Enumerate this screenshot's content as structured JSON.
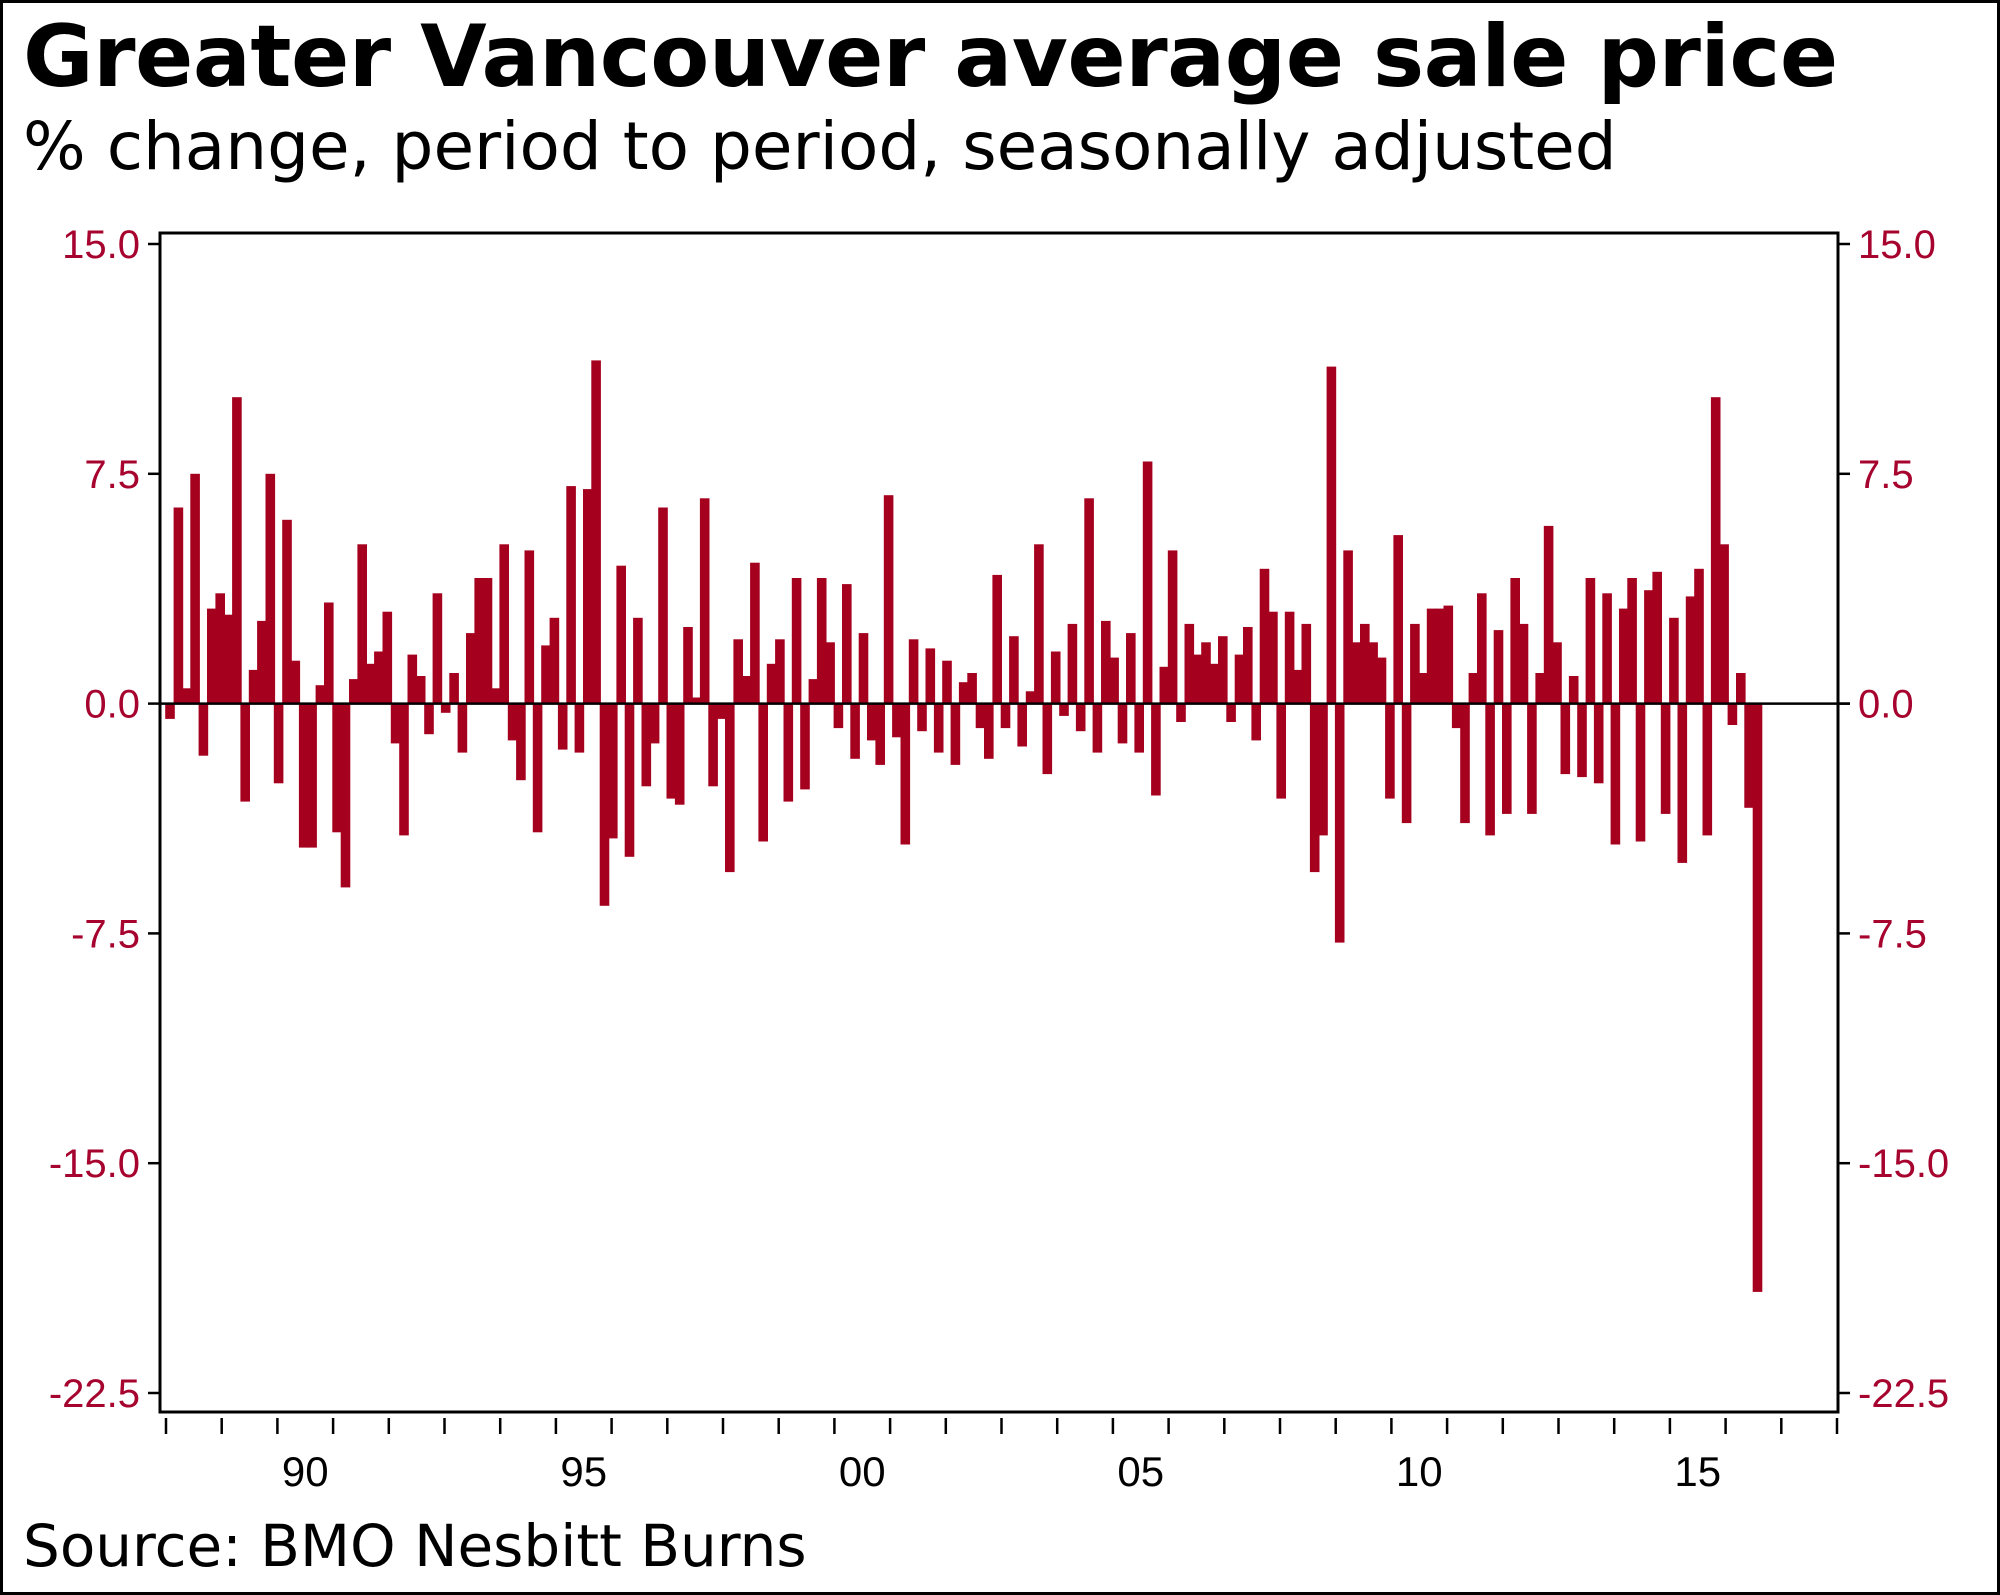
{
  "header": {
    "title": "Greater Vancouver average sale price",
    "subtitle": "% change, period to period, seasonally adjusted"
  },
  "footer": {
    "source": "Source: BMO Nesbitt Burns"
  },
  "colors": {
    "bar": "#a6001f",
    "tick_label": "#a6032e",
    "axis": "#000000"
  },
  "chart_data": {
    "type": "bar",
    "title": "Greater Vancouver average sale price",
    "subtitle": "% change, period to period, seasonally adjusted",
    "xlabel": "",
    "ylabel": "",
    "ylim": [
      -22.5,
      15.0
    ],
    "yticks": [
      15.0,
      7.5,
      0.0,
      -7.5,
      -15.0,
      -22.5
    ],
    "ytick_labels": [
      "15.0",
      "7.5",
      "0.0",
      "-7.5",
      "-15.0",
      "-22.5"
    ],
    "xlim": [
      1988.0,
      2018.0
    ],
    "xticks_minor_years": [
      1988,
      1989,
      1990,
      1991,
      1992,
      1993,
      1994,
      1995,
      1996,
      1997,
      1998,
      1999,
      2000,
      2001,
      2002,
      2003,
      2004,
      2005,
      2006,
      2007,
      2008,
      2009,
      2010,
      2011,
      2012,
      2013,
      2014,
      2015,
      2016,
      2017,
      2018
    ],
    "xtick_labels": [
      {
        "year": 1990,
        "label": "90"
      },
      {
        "year": 1995,
        "label": "95"
      },
      {
        "year": 2000,
        "label": "00"
      },
      {
        "year": 2005,
        "label": "05"
      },
      {
        "year": 2010,
        "label": "10"
      },
      {
        "year": 2015,
        "label": "15"
      }
    ],
    "dual_y_axis": true,
    "grid": false,
    "legend": "none",
    "x_start": 1988.0,
    "x_step_years": 0.15,
    "series": [
      {
        "name": "Average sale price % change",
        "values": [
          -0.5,
          6.4,
          0.5,
          7.5,
          -1.7,
          3.1,
          3.6,
          2.9,
          10.0,
          -3.2,
          1.1,
          2.7,
          7.5,
          -2.6,
          6.0,
          1.4,
          -4.7,
          -4.7,
          0.6,
          3.3,
          -4.2,
          -6.0,
          0.8,
          5.2,
          1.3,
          1.7,
          3.0,
          -1.3,
          -4.3,
          1.6,
          0.9,
          -1.0,
          3.6,
          -0.3,
          1.0,
          -1.6,
          2.3,
          4.1,
          4.1,
          0.5,
          5.2,
          -1.2,
          -2.5,
          5.0,
          -4.2,
          1.9,
          2.8,
          -1.5,
          7.1,
          -1.6,
          7.0,
          11.2,
          -6.6,
          -4.4,
          4.5,
          -5.0,
          2.8,
          -2.7,
          -1.3,
          6.4,
          -3.1,
          -3.3,
          2.5,
          0.2,
          6.7,
          -2.7,
          -0.5,
          -5.5,
          2.1,
          0.9,
          4.6,
          -4.5,
          1.3,
          2.1,
          -3.2,
          4.1,
          -2.8,
          0.8,
          4.1,
          2.0,
          -0.8,
          3.9,
          -1.8,
          2.3,
          -1.2,
          -2.0,
          6.8,
          -1.1,
          -4.6,
          2.1,
          -0.9,
          1.8,
          -1.6,
          1.4,
          -2.0,
          0.7,
          1.0,
          -0.8,
          -1.8,
          4.2,
          -0.8,
          2.2,
          -1.4,
          0.4,
          5.2,
          -2.3,
          1.7,
          -0.4,
          2.6,
          -0.9,
          6.7,
          -1.6,
          2.7,
          1.5,
          -1.3,
          2.3,
          -1.6,
          7.9,
          -3.0,
          1.2,
          5.0,
          -0.6,
          2.6,
          1.6,
          2.0,
          1.3,
          2.2,
          -0.6,
          1.6,
          2.5,
          -1.2,
          4.4,
          3.0,
          -3.1,
          3.0,
          1.1,
          2.6,
          -5.5,
          -4.3,
          11.0,
          -7.8,
          5.0,
          2.0,
          2.6,
          2.0,
          1.5,
          -3.1,
          5.5,
          -3.9,
          2.6,
          1.0,
          3.1,
          3.1,
          3.2,
          -0.8,
          -3.9,
          1.0,
          3.6,
          -4.3,
          2.4,
          -3.6,
          4.1,
          2.6,
          -3.6,
          1.0,
          5.8,
          2.0,
          -2.3,
          0.9,
          -2.4,
          4.1,
          -2.6,
          3.6,
          -4.6,
          3.1,
          4.1,
          -4.5,
          3.7,
          4.3,
          -3.6,
          2.8,
          -5.2,
          3.5,
          4.4,
          -4.3,
          10.0,
          5.2,
          -0.7,
          1.0,
          -3.4,
          -19.2
        ]
      }
    ],
    "source": "Source: BMO Nesbitt Burns"
  }
}
